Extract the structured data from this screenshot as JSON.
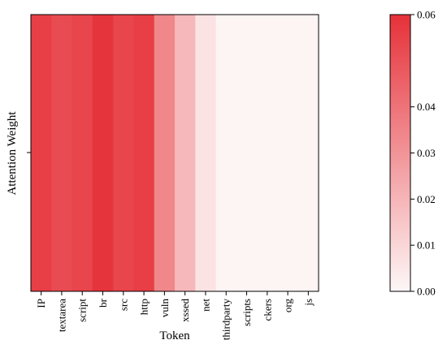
{
  "chart_data": {
    "type": "heatmap",
    "xlabel": "Token",
    "ylabel": "Attention Weight",
    "categories": [
      "IP",
      "textarea",
      "script",
      "br",
      "src",
      "http",
      "vuln",
      "xssed",
      "net",
      "thirdparty",
      "scripts",
      "ckers",
      "org",
      "js"
    ],
    "values": [
      0.056,
      0.052,
      0.054,
      0.059,
      0.054,
      0.056,
      0.034,
      0.019,
      0.006,
      0.001,
      0.001,
      0.001,
      0.001,
      0.001
    ],
    "colorbar": {
      "vmin": 0.0,
      "vmax": 0.06,
      "ticks": [
        "0.00",
        "0.01",
        "0.02",
        "0.03",
        "0.04",
        "0.06"
      ],
      "tick_values": [
        0.0,
        0.01,
        0.02,
        0.03,
        0.04,
        0.06
      ]
    },
    "colors": {
      "low": "#fdf7f7",
      "high": "#e63139"
    }
  }
}
